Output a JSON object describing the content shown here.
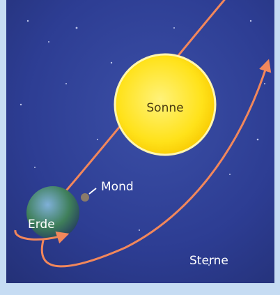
{
  "labels": {
    "sun": "Sonne",
    "moon": "Mond",
    "earth": "Erde",
    "stars": "Sterne"
  }
}
